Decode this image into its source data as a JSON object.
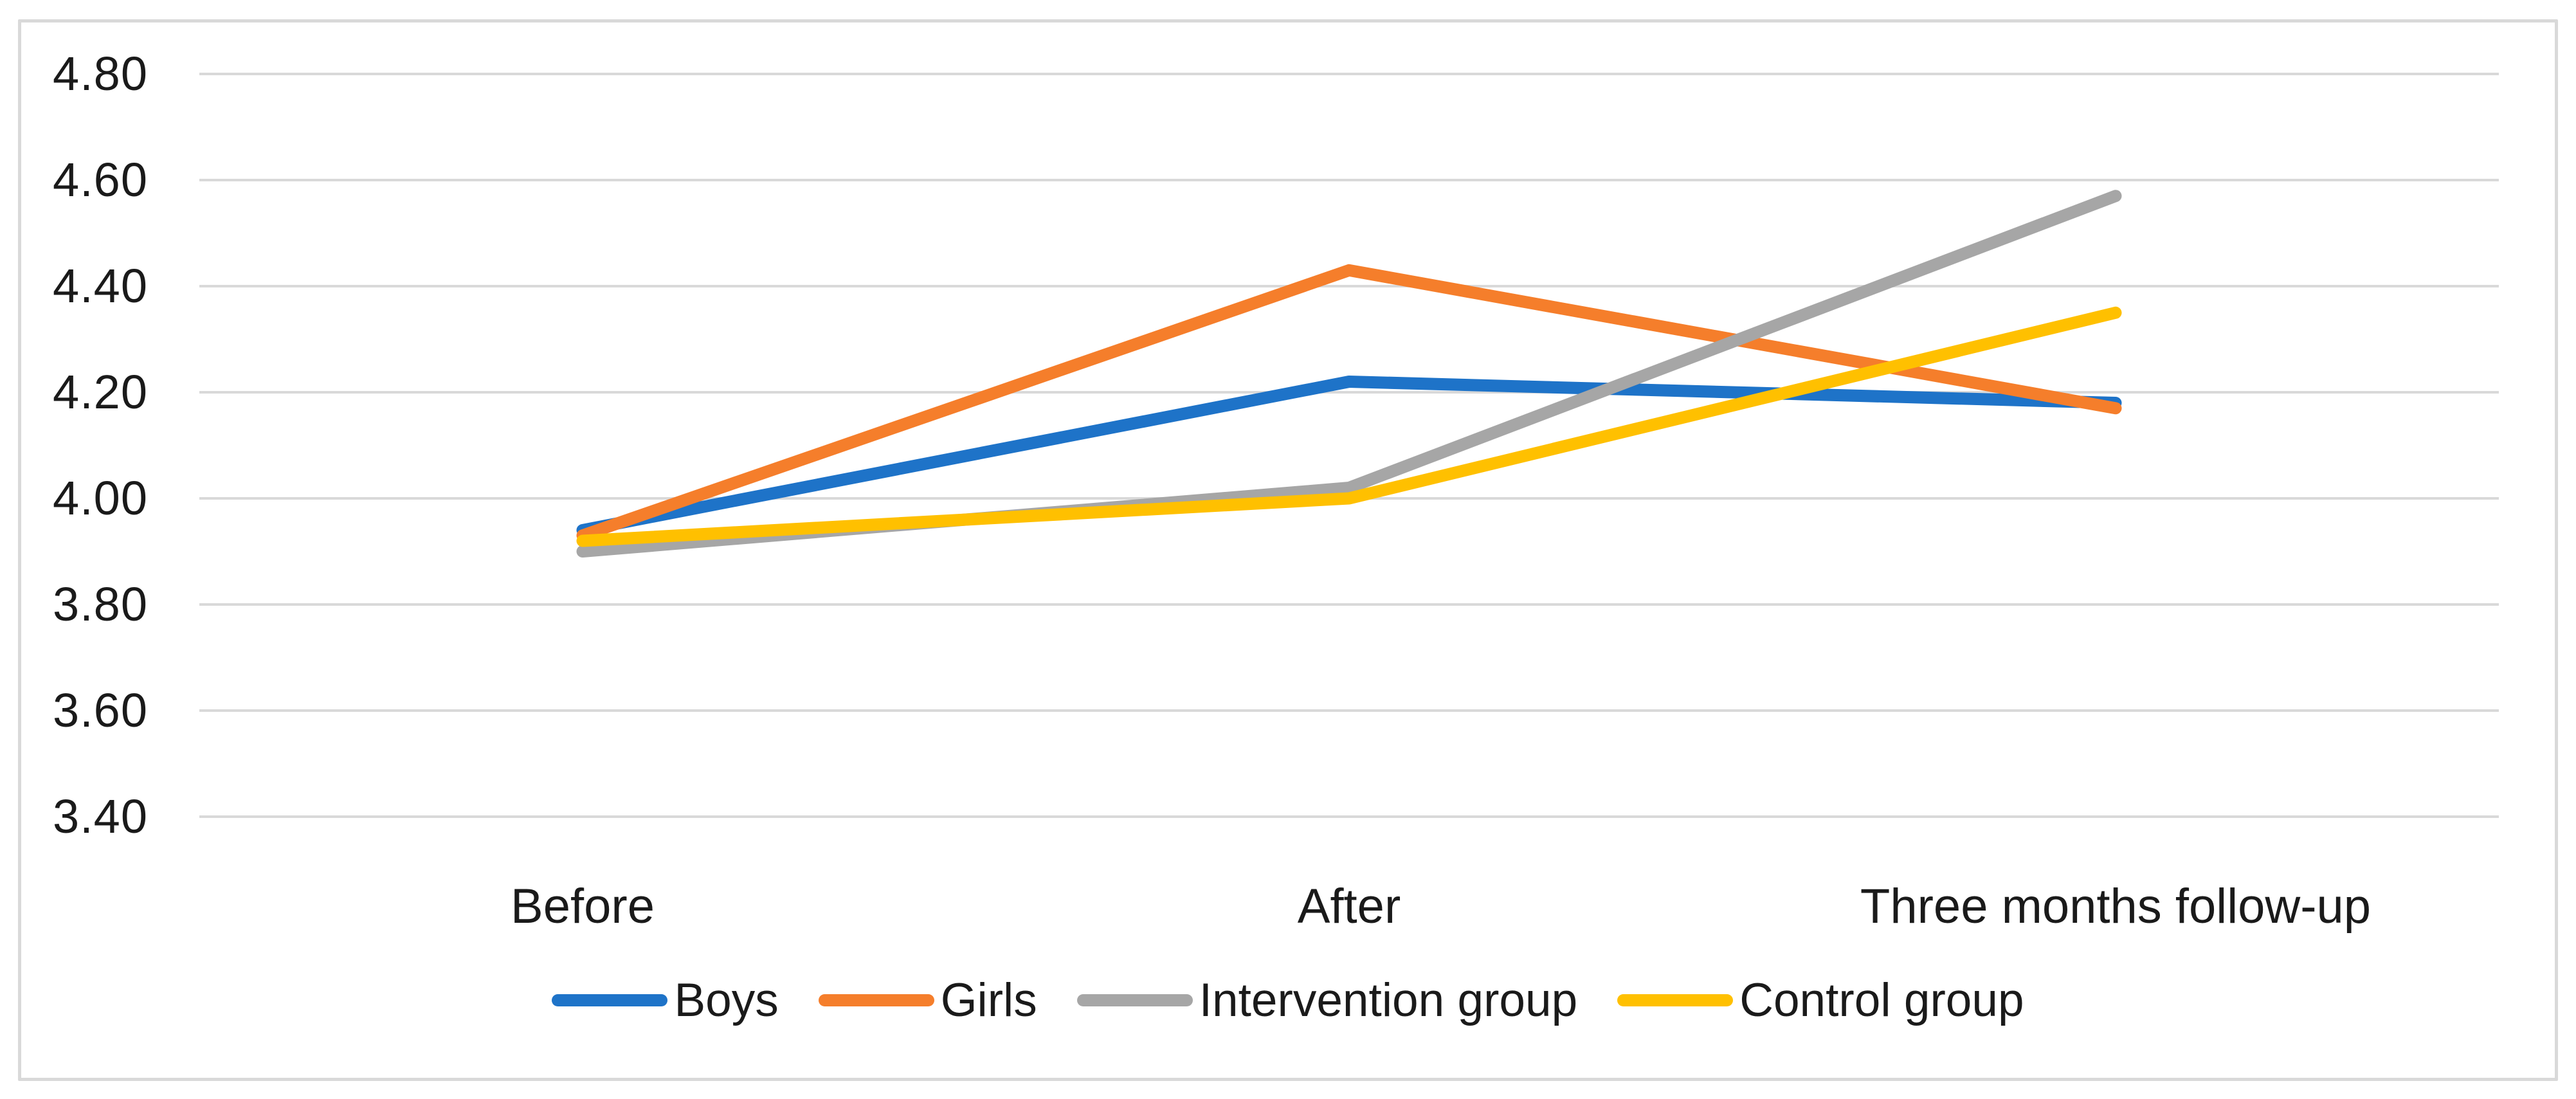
{
  "chart_data": {
    "type": "line",
    "title": "",
    "xlabel": "",
    "ylabel": "",
    "categories": [
      "Before",
      "After",
      "Three months follow-up"
    ],
    "series": [
      {
        "name": "Boys",
        "color": "#1E73C8",
        "values": [
          3.94,
          4.22,
          4.18
        ]
      },
      {
        "name": "Girls",
        "color": "#F57E2B",
        "values": [
          3.93,
          4.43,
          4.17
        ]
      },
      {
        "name": "Intervention group",
        "color": "#A6A6A6",
        "values": [
          3.9,
          4.02,
          4.57
        ]
      },
      {
        "name": "Control group",
        "color": "#FFC000",
        "values": [
          3.92,
          4.0,
          4.35
        ]
      }
    ],
    "ylim": [
      3.4,
      4.8
    ],
    "ytick_step": 0.2,
    "yticks": [
      "4.80",
      "4.60",
      "4.40",
      "4.20",
      "4.00",
      "3.80",
      "3.60",
      "3.40"
    ],
    "grid": "horizontal-major-gridlines",
    "legend_position": "bottom",
    "colors": {
      "gridline": "#D9D9D9",
      "frame_border": "#D9D9D9",
      "text": "#1A1A1A",
      "background": "#FFFFFF"
    }
  }
}
